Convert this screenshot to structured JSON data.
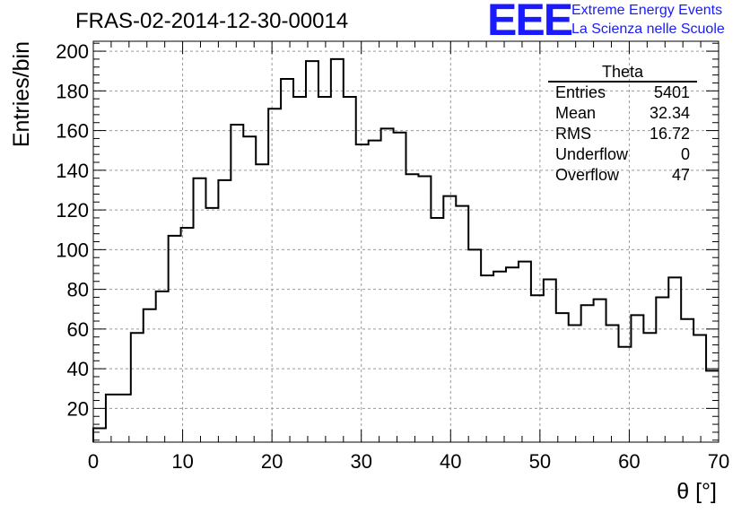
{
  "header": {
    "run_title": "FRAS-02-2014-12-30-00014",
    "logo_text": "EEE",
    "logo_line1": "Extreme Energy Events",
    "logo_line2": "La Scienza nelle Scuole",
    "logo_color": "#1a1aff"
  },
  "stats_box": {
    "title": "Theta",
    "rows": [
      {
        "label": "Entries",
        "value": "5401"
      },
      {
        "label": "Mean",
        "value": "32.34"
      },
      {
        "label": "RMS",
        "value": "16.72"
      },
      {
        "label": "Underflow",
        "value": "0"
      },
      {
        "label": "Overflow",
        "value": "47"
      }
    ]
  },
  "chart_data": {
    "type": "bar",
    "style": "step-histogram",
    "title": "FRAS-02-2014-12-30-00014",
    "xlabel": "θ [°]",
    "ylabel": "Entries/bin",
    "xlim": [
      0,
      70
    ],
    "ylim": [
      3,
      205
    ],
    "grid": true,
    "x_ticks": [
      0,
      10,
      20,
      30,
      40,
      50,
      60,
      70
    ],
    "y_ticks": [
      20,
      40,
      60,
      80,
      100,
      120,
      140,
      160,
      180,
      200
    ],
    "bin_width": 1.4,
    "bin_edges_start": 0,
    "series": [
      {
        "values": [
          10,
          27,
          27,
          58,
          70,
          79,
          107,
          111,
          136,
          121,
          135,
          163,
          157,
          143,
          171,
          186,
          177,
          195,
          177,
          196,
          177,
          153,
          155,
          161,
          159,
          138,
          137,
          116,
          127,
          122,
          100,
          87,
          89,
          91,
          94,
          77,
          85,
          68,
          62,
          72,
          75,
          62,
          51,
          67,
          58,
          76,
          86,
          65,
          57,
          39
        ]
      }
    ],
    "line_color": "#000000"
  }
}
